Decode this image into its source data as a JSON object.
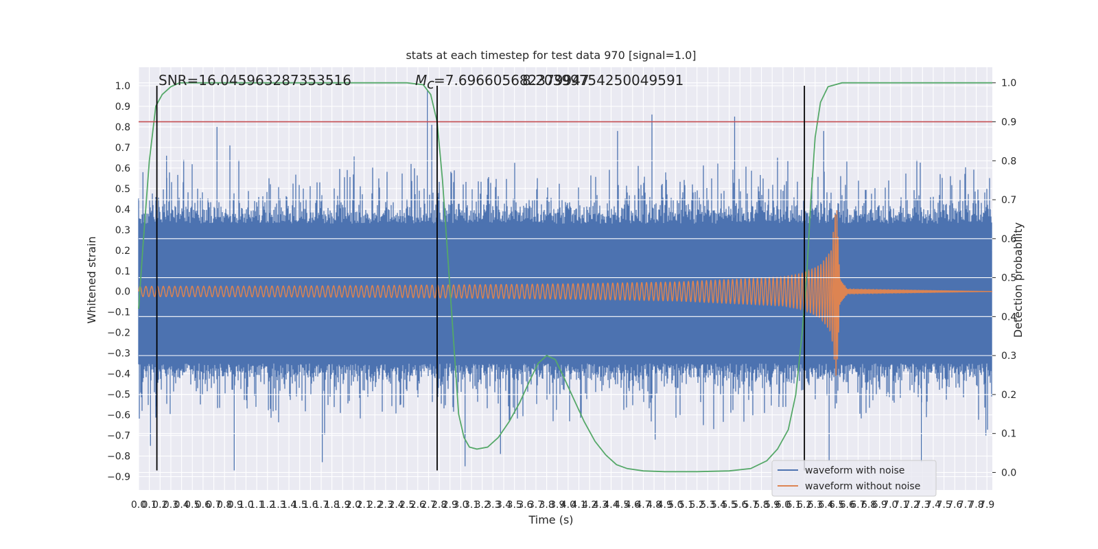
{
  "chart_data": {
    "type": "line",
    "title": "stats at each timestep for test data 970 [signal=1.0]",
    "xlabel": "Time (s)",
    "ylabel": "Whitened strain",
    "y2label": "Detection probability",
    "xlim": [
      0.0,
      7.95
    ],
    "ylim": [
      -0.965,
      1.09
    ],
    "y2lim": [
      -0.045,
      1.04
    ],
    "x_ticks": [
      0.0,
      0.1,
      0.2,
      0.3,
      0.4,
      0.5,
      0.6,
      0.7,
      0.8,
      0.9,
      1.0,
      1.1,
      1.2,
      1.3,
      1.4,
      1.5,
      1.6,
      1.7,
      1.8,
      1.9,
      2.0,
      2.1,
      2.2,
      2.3,
      2.4,
      2.5,
      2.6,
      2.7,
      2.8,
      2.9,
      3.0,
      3.1,
      3.2,
      3.3,
      3.4,
      3.5,
      3.6,
      3.7,
      3.8,
      3.9,
      4.0,
      4.1,
      4.2,
      4.3,
      4.4,
      4.5,
      4.6,
      4.7,
      4.8,
      4.9,
      5.0,
      5.1,
      5.2,
      5.3,
      5.4,
      5.5,
      5.6,
      5.7,
      5.8,
      5.9,
      6.0,
      6.1,
      6.2,
      6.3,
      6.4,
      6.5,
      6.6,
      6.7,
      6.8,
      6.9,
      7.0,
      7.1,
      7.2,
      7.3,
      7.4,
      7.5,
      7.6,
      7.7,
      7.8,
      7.9
    ],
    "x_tick_labels": [
      "0.0",
      "0.1",
      "0.2",
      "0.3",
      "0.4",
      "0.5",
      "0.6",
      "0.7",
      "0.8",
      "0.9",
      "1.0",
      "1.1",
      "1.2",
      "1.3",
      "1.4",
      "1.5",
      "1.6",
      "1.7",
      "1.8",
      "1.9",
      "2.0",
      "2.1",
      "2.2",
      "2.3",
      "2.4",
      "2.5",
      "2.6",
      "2.7",
      "2.8",
      "2.9",
      "3.0",
      "3.1",
      "3.2",
      "3.3",
      "3.4",
      "3.5",
      "3.6",
      "3.7",
      "3.8",
      "3.9",
      "4.0",
      "4.1",
      "4.2",
      "4.3",
      "4.4",
      "4.5",
      "4.6",
      "4.7",
      "4.8",
      "4.9",
      "5.0",
      "5.1",
      "5.2",
      "5.3",
      "5.4",
      "5.5",
      "5.6",
      "5.7",
      "5.8",
      "5.9",
      "6.0",
      "6.1",
      "6.2",
      "6.3",
      "6.4",
      "6.5",
      "6.6",
      "6.7",
      "6.8",
      "6.9",
      "7.0",
      "7.1",
      "7.2",
      "7.3",
      "7.4",
      "7.5",
      "7.6",
      "7.7",
      "7.8",
      "7.9"
    ],
    "y_ticks": [
      1.0,
      0.9,
      0.8,
      0.7,
      0.6,
      0.5,
      0.4,
      0.3,
      0.2,
      0.1,
      0.0,
      -0.1,
      -0.2,
      -0.3,
      -0.4,
      -0.5,
      -0.6,
      -0.7,
      -0.8,
      -0.9
    ],
    "y_tick_labels": [
      "1.0",
      "0.9",
      "0.8",
      "0.7",
      "0.6",
      "0.5",
      "0.4",
      "0.3",
      "0.2",
      "0.1",
      "0.0",
      "−0.1",
      "−0.2",
      "−0.3",
      "−0.4",
      "−0.5",
      "−0.6",
      "−0.7",
      "−0.8",
      "−0.9"
    ],
    "y2_ticks": [
      1.0,
      0.9,
      0.8,
      0.7,
      0.6,
      0.5,
      0.4,
      0.3,
      0.2,
      0.1,
      0.0
    ],
    "y2_tick_labels": [
      "1.0",
      "0.9",
      "0.8",
      "0.7",
      "0.6",
      "0.5",
      "0.4",
      "0.3",
      "0.2",
      "0.1",
      "0.0"
    ],
    "grid": true,
    "legend_position": "bottom-right",
    "annotations": {
      "snr": "SNR=16.045963287353516",
      "mc_symbol": "M",
      "mc_subscript": "c",
      "mc_value": "=7.696605682379947",
      "mc_overlap": "8.20399754250049591"
    },
    "series": [
      {
        "name": "waveform with noise",
        "color": "#4c72b0",
        "noise_band_envelope": {
          "x": [
            0.0,
            1.0,
            2.0,
            3.0,
            4.0,
            5.0,
            6.0,
            7.0,
            7.95
          ],
          "upper_typical": [
            0.33,
            0.33,
            0.33,
            0.33,
            0.33,
            0.33,
            0.33,
            0.33,
            0.33
          ],
          "lower_typical": [
            -0.35,
            -0.35,
            -0.35,
            -0.35,
            -0.35,
            -0.35,
            -0.35,
            -0.35,
            -0.35
          ]
        },
        "notable_peaks": [
          {
            "x": 0.04,
            "y": 0.58
          },
          {
            "x": 0.26,
            "y": 0.66
          },
          {
            "x": 0.42,
            "y": 0.64
          },
          {
            "x": 0.73,
            "y": 0.8
          },
          {
            "x": 0.85,
            "y": 0.71
          },
          {
            "x": 2.69,
            "y": 0.98
          },
          {
            "x": 2.73,
            "y": 0.81
          },
          {
            "x": 4.46,
            "y": 0.78
          },
          {
            "x": 4.78,
            "y": 0.86
          },
          {
            "x": 5.55,
            "y": 0.85
          },
          {
            "x": 6.38,
            "y": 0.78
          }
        ],
        "notable_troughs": [
          {
            "x": 0.11,
            "y": -0.75
          },
          {
            "x": 0.89,
            "y": -0.87
          },
          {
            "x": 1.71,
            "y": -0.83
          },
          {
            "x": 3.04,
            "y": -0.85
          },
          {
            "x": 3.37,
            "y": -0.79
          },
          {
            "x": 4.81,
            "y": -0.72
          },
          {
            "x": 6.43,
            "y": -0.82
          },
          {
            "x": 7.29,
            "y": -0.83
          },
          {
            "x": 7.89,
            "y": -0.7
          }
        ]
      },
      {
        "name": "waveform without noise",
        "color": "#dd8452",
        "chirp": {
          "merger_time": 6.5,
          "amplitude_x": [
            0.0,
            1.0,
            2.0,
            3.0,
            4.0,
            5.0,
            6.0,
            6.2,
            6.35,
            6.45,
            6.5,
            6.53,
            6.6,
            7.95
          ],
          "amplitude_y": [
            0.025,
            0.026,
            0.028,
            0.032,
            0.037,
            0.046,
            0.07,
            0.09,
            0.13,
            0.2,
            0.44,
            0.06,
            0.01,
            0.0
          ]
        }
      },
      {
        "name": "detection probability",
        "axis": "right",
        "color": "#55a868",
        "x": [
          0.0,
          0.04,
          0.1,
          0.16,
          0.22,
          0.3,
          0.38,
          0.5,
          0.6,
          0.8,
          1.0,
          1.5,
          2.0,
          2.5,
          2.65,
          2.72,
          2.78,
          2.83,
          2.88,
          2.93,
          2.98,
          3.03,
          3.08,
          3.15,
          3.25,
          3.35,
          3.45,
          3.55,
          3.65,
          3.72,
          3.8,
          3.88,
          3.95,
          4.05,
          4.15,
          4.25,
          4.35,
          4.45,
          4.55,
          4.7,
          4.9,
          5.2,
          5.5,
          5.7,
          5.85,
          5.95,
          6.05,
          6.12,
          6.18,
          6.22,
          6.26,
          6.3,
          6.35,
          6.42,
          6.55,
          6.8,
          7.2,
          7.6,
          7.95
        ],
        "y": [
          0.42,
          0.58,
          0.8,
          0.94,
          0.97,
          0.99,
          1.0,
          1.0,
          1.0,
          1.0,
          1.0,
          1.0,
          1.0,
          1.0,
          0.995,
          0.97,
          0.9,
          0.75,
          0.55,
          0.35,
          0.15,
          0.09,
          0.065,
          0.06,
          0.065,
          0.09,
          0.13,
          0.18,
          0.24,
          0.28,
          0.3,
          0.29,
          0.25,
          0.19,
          0.13,
          0.08,
          0.045,
          0.02,
          0.01,
          0.004,
          0.002,
          0.002,
          0.004,
          0.01,
          0.03,
          0.06,
          0.11,
          0.2,
          0.36,
          0.5,
          0.7,
          0.86,
          0.95,
          0.99,
          1.0,
          1.0,
          1.0,
          1.0,
          1.0
        ]
      },
      {
        "name": "threshold",
        "axis": "right",
        "color": "#c44e52",
        "value": 0.9
      }
    ],
    "vertical_markers": {
      "color": "#000000",
      "x": [
        0.17,
        2.78,
        6.2
      ],
      "y_from": -0.87,
      "y_to": 1.0
    }
  }
}
